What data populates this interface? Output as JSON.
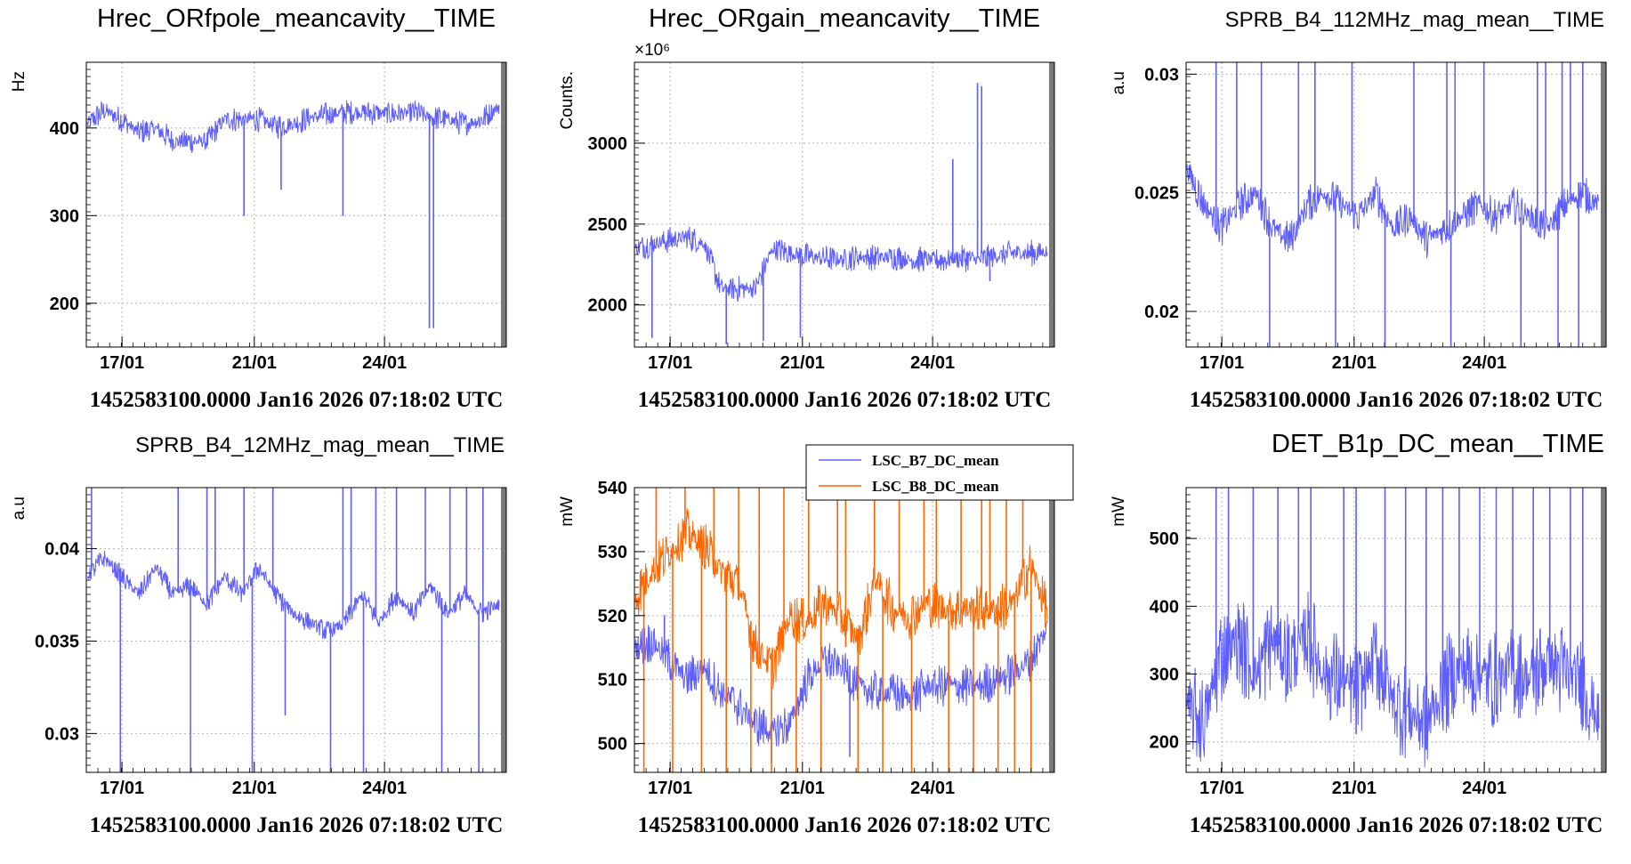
{
  "colors": {
    "series_blue": "#5e5eff",
    "series_orange": "#ff6600",
    "grid": "#b4b4b4",
    "end_band": "#7a7a7a"
  },
  "chart_data": [
    {
      "type": "line",
      "title": "Hrec_ORfpole_meancavity__TIME",
      "ylabel": "Hz",
      "footer": "1452583100.0000 Jan16 2026 07:18:02 UTC",
      "x_ticks": [
        "17/01",
        "21/01",
        "24/01"
      ],
      "y_ticks": [
        "200",
        "300",
        "400"
      ],
      "ylim": [
        150,
        475
      ],
      "grid": true,
      "series": [
        {
          "color": "#5e5eff",
          "base": [
            405,
            420,
            410,
            395,
            400,
            385,
            385,
            385,
            410,
            410,
            410,
            402,
            405,
            412,
            415,
            418,
            418,
            417,
            416,
            418,
            412,
            410,
            404,
            410,
            425
          ],
          "noise": 30,
          "spikes": [
            [
              0.38,
              300
            ],
            [
              0.47,
              330
            ],
            [
              0.62,
              300
            ],
            [
              0.83,
              172
            ],
            [
              0.84,
              172
            ],
            [
              0.22,
              380
            ]
          ]
        }
      ]
    },
    {
      "type": "line",
      "title": "Hrec_ORgain_meancavity__TIME",
      "ylabel": "Counts.",
      "multiplier": "×10⁶",
      "footer": "1452583100.0000 Jan16 2026 07:18:02 UTC",
      "x_ticks": [
        "17/01",
        "21/01",
        "24/01"
      ],
      "y_ticks": [
        "2000",
        "2500",
        "3000"
      ],
      "ylim": [
        1740,
        3500
      ],
      "grid": true,
      "series": [
        {
          "color": "#5e5eff",
          "base": [
            2350,
            2380,
            2400,
            2420,
            2380,
            2100,
            2100,
            2100,
            2350,
            2320,
            2300,
            2290,
            2280,
            2300,
            2290,
            2300,
            2280,
            2280,
            2280,
            2290,
            2280,
            2300,
            2320,
            2320,
            2330
          ],
          "noise": 170,
          "spikes": [
            [
              0.04,
              1800
            ],
            [
              0.22,
              1760
            ],
            [
              0.31,
              1780
            ],
            [
              0.4,
              1800
            ],
            [
              0.77,
              2900
            ],
            [
              0.83,
              3370
            ],
            [
              0.84,
              3350
            ],
            [
              0.86,
              2150
            ]
          ]
        }
      ]
    },
    {
      "type": "line",
      "title": "SPRB_B4_112MHz_mag_mean__TIME",
      "ylabel": "a.u",
      "footer": "1452583100.0000 Jan16 2026 07:18:02 UTC",
      "x_ticks": [
        "17/01",
        "21/01",
        "24/01"
      ],
      "y_ticks": [
        "0.02",
        "0.025",
        "0.03"
      ],
      "ylim": [
        0.0185,
        0.0305
      ],
      "grid": true,
      "series": [
        {
          "color": "#5e5eff",
          "base": [
            0.026,
            0.0245,
            0.0235,
            0.0245,
            0.025,
            0.0235,
            0.023,
            0.0245,
            0.025,
            0.0245,
            0.024,
            0.025,
            0.0235,
            0.024,
            0.023,
            0.0235,
            0.024,
            0.0245,
            0.024,
            0.0245,
            0.024,
            0.0235,
            0.0245,
            0.025,
            0.0245
          ],
          "noise": 0.0016,
          "spikes": [
            [
              0.07,
              0.0305
            ],
            [
              0.12,
              0.0305
            ],
            [
              0.18,
              0.0305
            ],
            [
              0.2,
              0.0185
            ],
            [
              0.27,
              0.0305
            ],
            [
              0.31,
              0.0305
            ],
            [
              0.36,
              0.0185
            ],
            [
              0.4,
              0.0305
            ],
            [
              0.48,
              0.0185
            ],
            [
              0.55,
              0.0305
            ],
            [
              0.63,
              0.0305
            ],
            [
              0.64,
              0.0185
            ],
            [
              0.65,
              0.0305
            ],
            [
              0.72,
              0.0305
            ],
            [
              0.81,
              0.0185
            ],
            [
              0.85,
              0.0305
            ],
            [
              0.87,
              0.0305
            ],
            [
              0.9,
              0.0185
            ],
            [
              0.91,
              0.0305
            ],
            [
              0.93,
              0.0305
            ],
            [
              0.95,
              0.0185
            ],
            [
              0.96,
              0.0305
            ]
          ]
        }
      ]
    },
    {
      "type": "line",
      "title": "SPRB_B4_12MHz_mag_mean__TIME",
      "ylabel": "a.u",
      "footer": "1452583100.0000 Jan16 2026 07:18:02 UTC",
      "x_ticks": [
        "17/01",
        "21/01",
        "24/01"
      ],
      "y_ticks": [
        "0.03",
        "0.035",
        "0.04"
      ],
      "ylim": [
        0.0279,
        0.0433
      ],
      "grid": true,
      "series": [
        {
          "color": "#5e5eff",
          "base": [
            0.0385,
            0.0395,
            0.0385,
            0.0375,
            0.039,
            0.0375,
            0.038,
            0.037,
            0.0385,
            0.0375,
            0.039,
            0.0375,
            0.0365,
            0.036,
            0.0355,
            0.036,
            0.0375,
            0.036,
            0.0375,
            0.0365,
            0.038,
            0.0365,
            0.0375,
            0.0365,
            0.037
          ],
          "noise": 0.0012,
          "spikes": [
            [
              0.01,
              0.0433
            ],
            [
              0.08,
              0.0279
            ],
            [
              0.22,
              0.0433
            ],
            [
              0.25,
              0.0279
            ],
            [
              0.29,
              0.0433
            ],
            [
              0.31,
              0.0433
            ],
            [
              0.38,
              0.0433
            ],
            [
              0.4,
              0.0279
            ],
            [
              0.45,
              0.0433
            ],
            [
              0.48,
              0.031
            ],
            [
              0.59,
              0.0279
            ],
            [
              0.62,
              0.0433
            ],
            [
              0.64,
              0.0433
            ],
            [
              0.67,
              0.0279
            ],
            [
              0.7,
              0.0433
            ],
            [
              0.75,
              0.0433
            ],
            [
              0.82,
              0.0433
            ],
            [
              0.86,
              0.0279
            ],
            [
              0.88,
              0.0433
            ],
            [
              0.92,
              0.0433
            ],
            [
              0.95,
              0.0279
            ],
            [
              0.96,
              0.0433
            ]
          ]
        }
      ]
    },
    {
      "type": "line",
      "title": "",
      "ylabel": "mW",
      "footer": "1452583100.0000 Jan16 2026 07:18:02 UTC",
      "x_ticks": [
        "17/01",
        "21/01",
        "24/01"
      ],
      "y_ticks": [
        "500",
        "510",
        "520",
        "530",
        "540"
      ],
      "ylim": [
        495.5,
        540
      ],
      "grid": true,
      "legend": [
        "LSC_B7_DC_mean",
        "LSC_B8_DC_mean"
      ],
      "legend_position": "top-right",
      "series": [
        {
          "name": "LSC_B7_DC_mean",
          "color": "#5e5eff",
          "base": [
            515,
            516,
            513,
            510,
            512,
            508,
            506,
            503,
            502,
            503,
            510,
            513,
            512,
            509,
            508,
            508,
            507,
            509,
            509,
            509,
            509,
            510,
            511,
            513,
            518
          ],
          "noise": 7,
          "spikes": [
            [
              0.07,
              520
            ],
            [
              0.33,
              497
            ],
            [
              0.52,
              498
            ]
          ]
        },
        {
          "name": "LSC_B8_DC_mean",
          "color": "#ff6600",
          "base": [
            523,
            527,
            530,
            533,
            531,
            527,
            525,
            515,
            512,
            520,
            519,
            522,
            520,
            516,
            526,
            521,
            520,
            522,
            521,
            521,
            521,
            521,
            522,
            528,
            521
          ],
          "noise": 8,
          "spikes": [
            [
              0.02,
              495.5
            ],
            [
              0.05,
              540
            ],
            [
              0.09,
              495.5
            ],
            [
              0.12,
              540
            ],
            [
              0.16,
              495.5
            ],
            [
              0.19,
              540
            ],
            [
              0.22,
              495.5
            ],
            [
              0.25,
              540
            ],
            [
              0.28,
              495.5
            ],
            [
              0.3,
              540
            ],
            [
              0.33,
              495.5
            ],
            [
              0.36,
              540
            ],
            [
              0.39,
              495.5
            ],
            [
              0.42,
              540
            ],
            [
              0.45,
              495.5
            ],
            [
              0.49,
              540
            ],
            [
              0.51,
              540
            ],
            [
              0.54,
              495.5
            ],
            [
              0.58,
              540
            ],
            [
              0.6,
              495.5
            ],
            [
              0.64,
              540
            ],
            [
              0.67,
              495.5
            ],
            [
              0.7,
              540
            ],
            [
              0.73,
              540
            ],
            [
              0.76,
              495.5
            ],
            [
              0.79,
              540
            ],
            [
              0.82,
              495.5
            ],
            [
              0.84,
              540
            ],
            [
              0.86,
              540
            ],
            [
              0.88,
              495.5
            ],
            [
              0.9,
              540
            ],
            [
              0.92,
              495.5
            ],
            [
              0.94,
              540
            ],
            [
              0.96,
              495.5
            ]
          ]
        }
      ]
    },
    {
      "type": "line",
      "title": "DET_B1p_DC_mean__TIME",
      "ylabel": "mW",
      "footer": "1452583100.0000 Jan16 2026 07:18:02 UTC",
      "x_ticks": [
        "17/01",
        "21/01",
        "24/01"
      ],
      "y_ticks": [
        "200",
        "300",
        "400",
        "500"
      ],
      "ylim": [
        155,
        575
      ],
      "grid": true,
      "series": [
        {
          "color": "#5e5eff",
          "base": [
            250,
            230,
            330,
            350,
            300,
            350,
            320,
            360,
            300,
            290,
            270,
            330,
            260,
            240,
            230,
            280,
            310,
            300,
            290,
            310,
            290,
            320,
            300,
            290,
            230
          ],
          "noise": 150,
          "spikes": [
            [
              0.07,
              575
            ],
            [
              0.1,
              575
            ],
            [
              0.16,
              575
            ],
            [
              0.22,
              575
            ],
            [
              0.27,
              575
            ],
            [
              0.3,
              575
            ],
            [
              0.38,
              575
            ],
            [
              0.41,
              575
            ],
            [
              0.48,
              575
            ],
            [
              0.53,
              575
            ],
            [
              0.58,
              575
            ],
            [
              0.62,
              575
            ],
            [
              0.66,
              575
            ],
            [
              0.71,
              575
            ],
            [
              0.75,
              575
            ],
            [
              0.79,
              575
            ],
            [
              0.84,
              575
            ],
            [
              0.88,
              575
            ],
            [
              0.93,
              575
            ],
            [
              0.96,
              575
            ]
          ]
        }
      ]
    }
  ]
}
